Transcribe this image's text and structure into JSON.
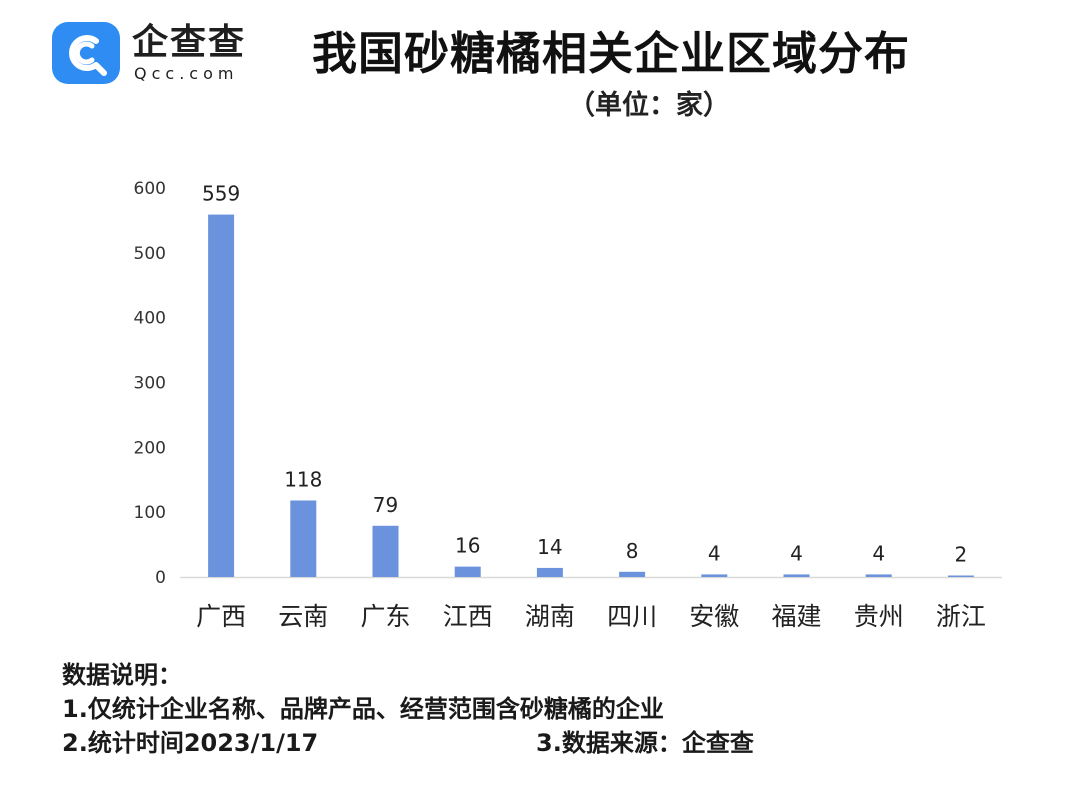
{
  "brand": {
    "name_cn": "企查查",
    "name_en": "Qcc.com",
    "accent_color": "#2f8cf2",
    "icon": "qcc-magnifier-logo-icon"
  },
  "title": "我国砂糖橘相关企业区域分布",
  "unit": "（单位：家）",
  "chart_data": {
    "type": "bar",
    "title": "我国砂糖橘相关企业区域分布",
    "ylabel": "",
    "xlabel": "",
    "categories": [
      "广西",
      "云南",
      "广东",
      "江西",
      "湖南",
      "四川",
      "安徽",
      "福建",
      "贵州",
      "浙江"
    ],
    "values": [
      559,
      118,
      79,
      16,
      14,
      8,
      4,
      4,
      4,
      2
    ],
    "value_labels": [
      "559",
      "118",
      "79",
      "16",
      "14",
      "8",
      "4",
      "4",
      "4",
      "2"
    ],
    "ylim": [
      0,
      600
    ],
    "yticks": [
      0,
      100,
      200,
      300,
      400,
      500,
      600
    ],
    "ytick_labels": [
      "0",
      "100",
      "200",
      "300",
      "400",
      "500",
      "600"
    ],
    "grid": false,
    "bar_color": "#6b93dd"
  },
  "notes": {
    "heading": "数据说明：",
    "line1": "1.仅统计企业名称、品牌产品、经营范围含砂糖橘的企业",
    "line2": "2.统计时间2023/1/17",
    "line3": "3.数据来源：企查查"
  }
}
